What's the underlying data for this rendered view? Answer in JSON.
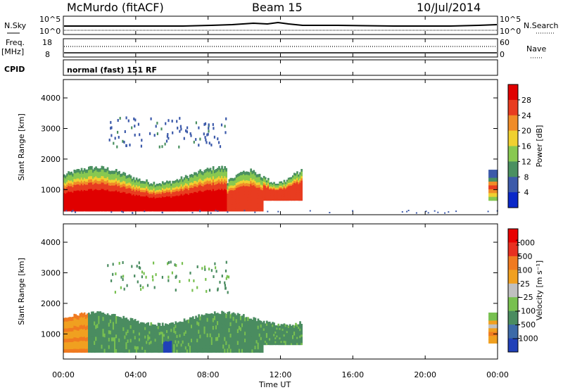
{
  "header": {
    "station": "McMurdo (fitACF)",
    "beam": "Beam 15",
    "date": "10/Jul/2014"
  },
  "strip": {
    "nsky_label": "N.Sky",
    "nsky_ticks": [
      "10^5",
      "10^0"
    ],
    "nsearch_label": "N.Search",
    "nsearch_ticks": [
      "10^5",
      "10^0"
    ],
    "freq_label": "Freq.",
    "freq_unit": "[MHz]",
    "freq_ticks": [
      "18",
      "8"
    ],
    "nave_label": "Nave",
    "nave_ticks": [
      "60",
      "0"
    ],
    "cpid_label": "CPID",
    "cpid_text": "normal (fast) 151 RF"
  },
  "x_axis": {
    "label": "Time UT",
    "ticks": [
      "00:00",
      "04:00",
      "08:00",
      "12:00",
      "16:00",
      "20:00",
      "00:00"
    ],
    "range_hours": [
      0,
      24
    ]
  },
  "chart_data": [
    {
      "type": "heatmap",
      "panel": "power",
      "ylabel": "Slant Range [km]",
      "ylim": [
        180,
        4600
      ],
      "yticks": [
        1000,
        2000,
        3000,
        4000
      ],
      "colorbar_label": "Power [dB]",
      "colorbar_ticks": [
        "4",
        "8",
        "12",
        "16",
        "20",
        "24",
        "28"
      ],
      "colorbar_values": [
        4,
        8,
        12,
        16,
        20,
        24,
        28
      ],
      "colorbar_colors": [
        "#0a28c8",
        "#3c5aaa",
        "#4a9060",
        "#88c850",
        "#f0d030",
        "#f08c28",
        "#e83c20",
        "#e00000"
      ],
      "regions": [
        {
          "t": [
            0,
            13.2
          ],
          "range_km": [
            300,
            1700
          ],
          "peak_db": 28
        },
        {
          "t": [
            23.5,
            24
          ],
          "range_km": [
            600,
            1700
          ],
          "peak_db": 26
        }
      ]
    },
    {
      "type": "heatmap",
      "panel": "velocity",
      "ylabel": "Slant Range [km]",
      "ylim": [
        180,
        4600
      ],
      "yticks": [
        1000,
        2000,
        3000,
        4000
      ],
      "colorbar_label": "Velocity [m s⁻¹]",
      "colorbar_ticks": [
        "1000",
        "500",
        "100",
        "25",
        "−25",
        "−100",
        "−500",
        "−1000"
      ],
      "colorbar_values": [
        1000,
        500,
        100,
        25,
        -25,
        -100,
        -500,
        -1000
      ],
      "colorbar_colors": [
        "#2040b8",
        "#3c6aa8",
        "#4a8c60",
        "#78c050",
        "#c0c0c0",
        "#f0a020",
        "#f07a20",
        "#e83020",
        "#e80000"
      ],
      "regions": [
        {
          "t": [
            0,
            13.2
          ],
          "range_km": [
            300,
            1700
          ],
          "dominant_velocity": 100
        },
        {
          "t": [
            23.5,
            24
          ],
          "range_km": [
            600,
            1700
          ],
          "dominant_velocity": -100
        }
      ]
    }
  ]
}
